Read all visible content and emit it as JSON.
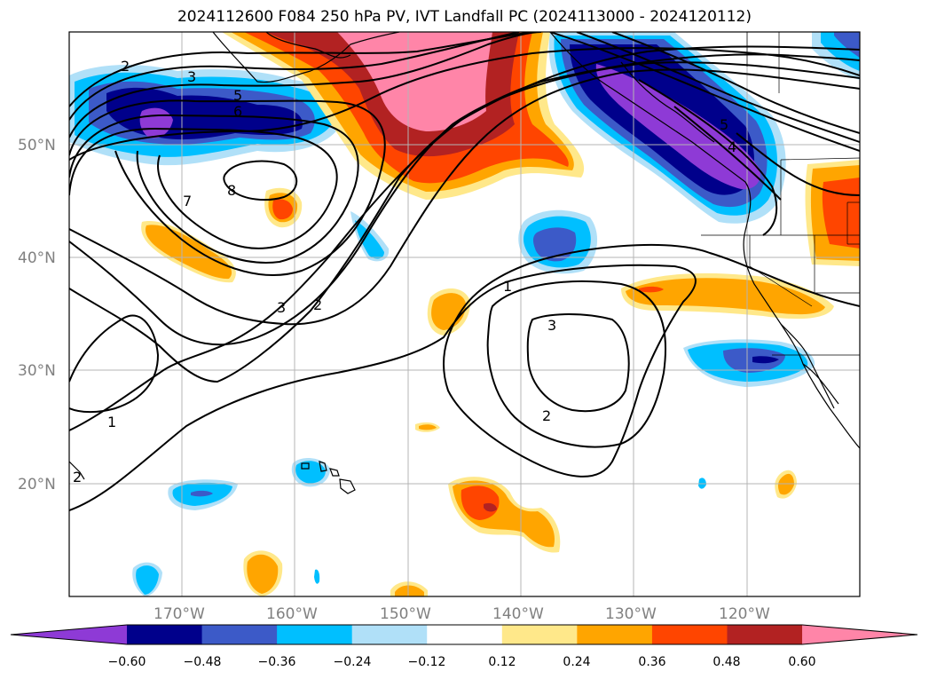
{
  "title": "2024112600 F084 250 hPa PV, IVT Landfall PC (2024113000 - 2024120112)",
  "lat_labels": [
    "50°N",
    "40°N",
    "30°N",
    "20°N"
  ],
  "lon_labels": [
    "170°W",
    "160°W",
    "150°W",
    "140°W",
    "130°W",
    "120°W"
  ],
  "colorbar": {
    "colors": [
      "#8e3ad6",
      "#00008b",
      "#3c5ac8",
      "#00bfff",
      "#b0e0f8",
      "#ffffff",
      "#ffe88a",
      "#ffa500",
      "#ff4500",
      "#b22222",
      "#ff85a8"
    ],
    "ticks": [
      "−0.60",
      "−0.48",
      "−0.36",
      "−0.24",
      "−0.12",
      "0.12",
      "0.24",
      "0.36",
      "0.48",
      "0.60"
    ]
  },
  "contour_labels": [
    "2",
    "3",
    "5",
    "6",
    "7",
    "8",
    "3",
    "2",
    "1",
    "1",
    "3",
    "2",
    "5",
    "4",
    "2"
  ]
}
